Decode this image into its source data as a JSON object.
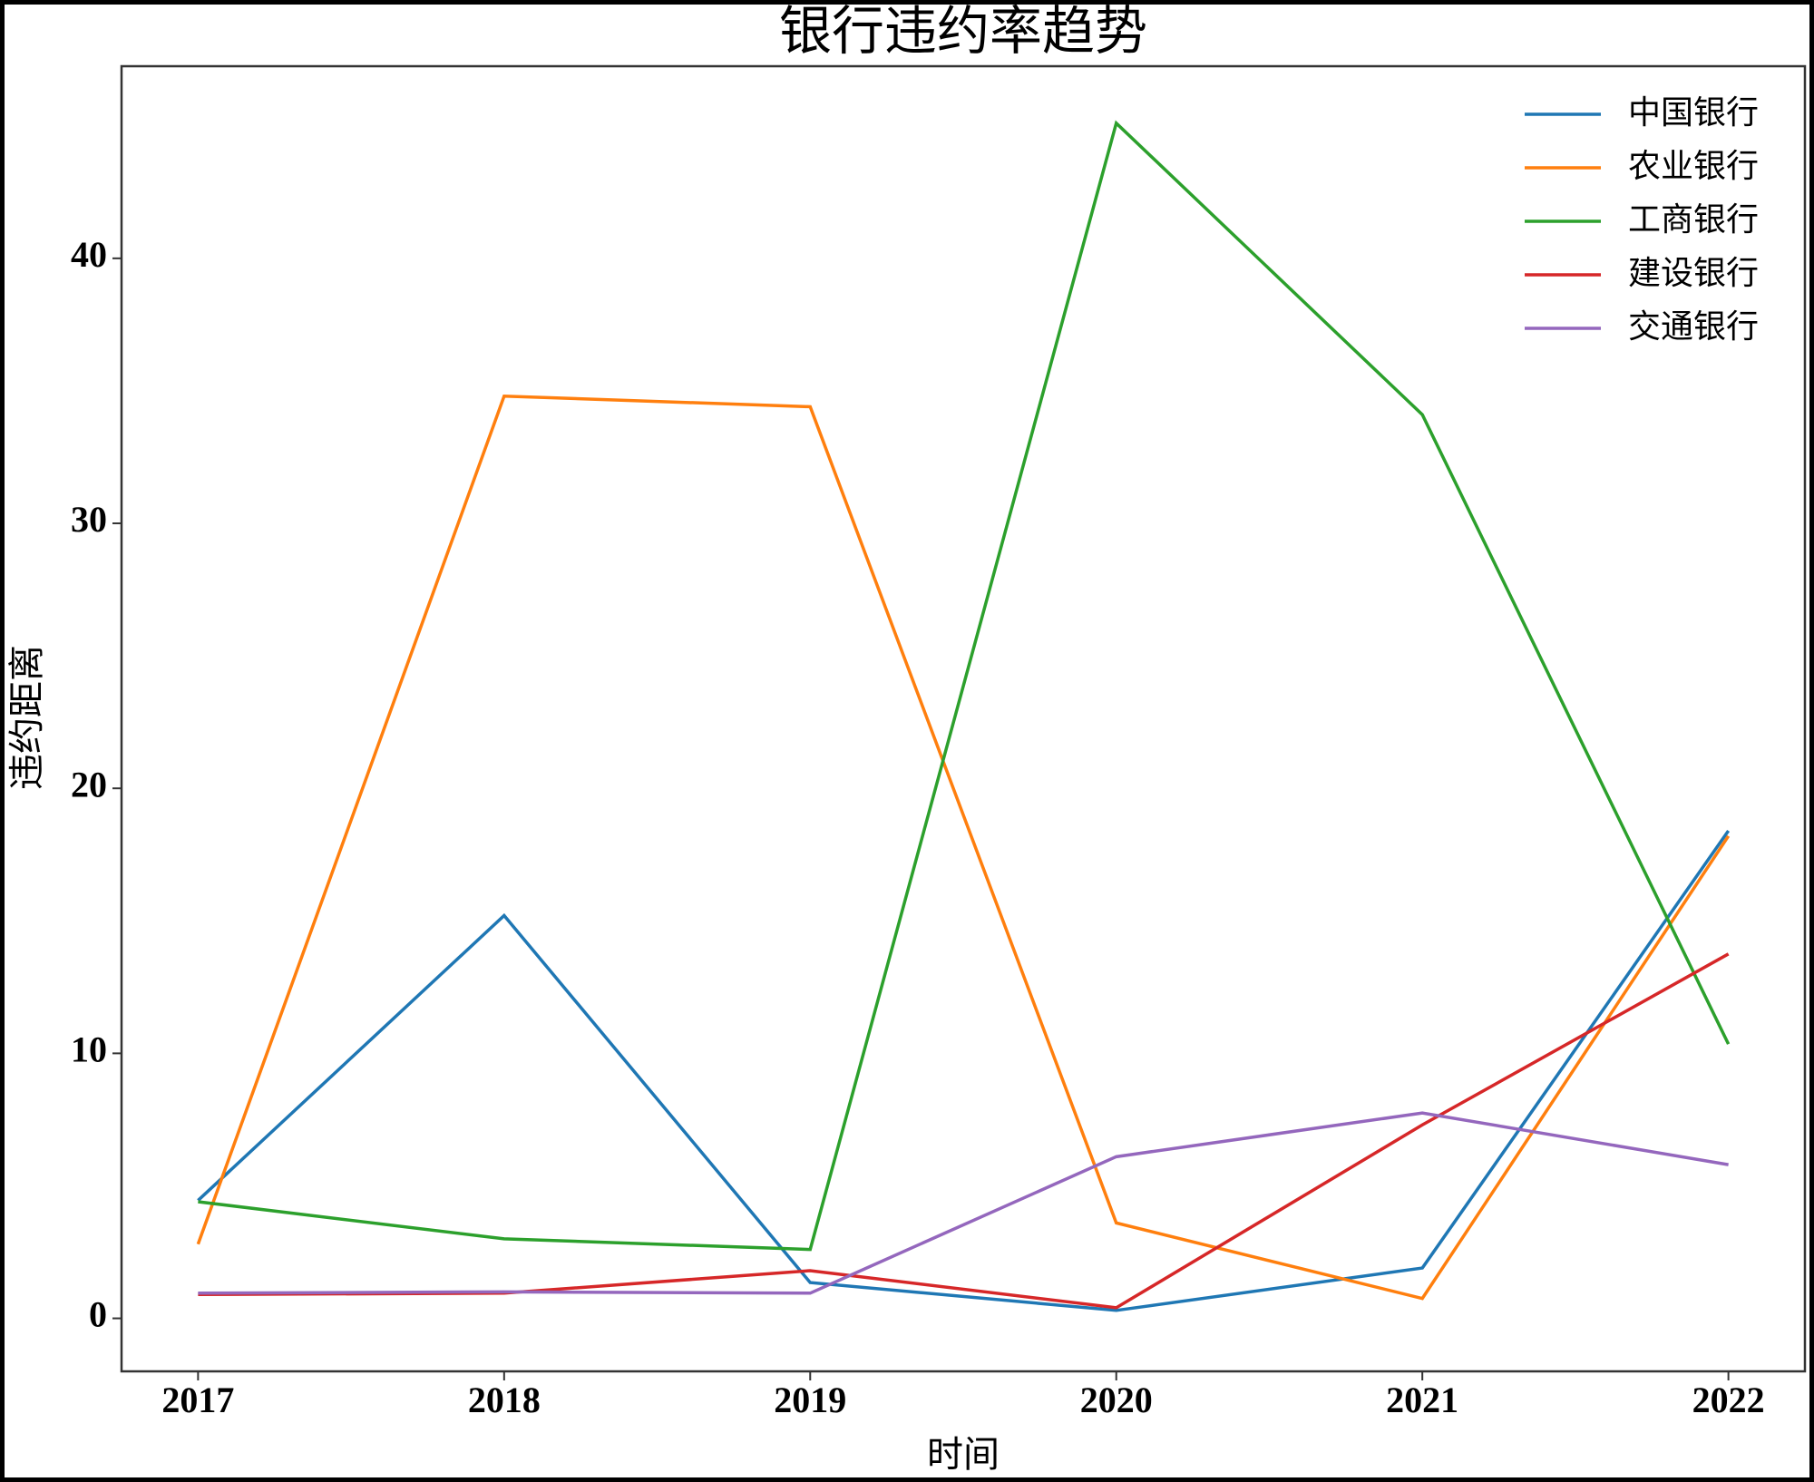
{
  "chart_data": {
    "type": "line",
    "title": "银行违约率趋势",
    "x_label": "时间",
    "y_label": "违约距离",
    "x": [
      2017,
      2018,
      2019,
      2020,
      2021,
      2022
    ],
    "series": [
      {
        "name": "中国银行",
        "color": "#1f77b4",
        "values": [
          4.45,
          15.2,
          1.35,
          0.3,
          1.9,
          18.4
        ]
      },
      {
        "name": "农业银行",
        "color": "#ff7f0e",
        "values": [
          2.8,
          34.8,
          34.4,
          3.6,
          0.75,
          18.2
        ]
      },
      {
        "name": "工商银行",
        "color": "#2ca02c",
        "values": [
          4.4,
          3.0,
          2.6,
          45.1,
          34.1,
          10.35
        ]
      },
      {
        "name": "建设银行",
        "color": "#d62728",
        "values": [
          0.9,
          0.95,
          1.8,
          0.4,
          7.3,
          13.75
        ]
      },
      {
        "name": "交通银行",
        "color": "#9467bd",
        "values": [
          0.95,
          1.0,
          0.95,
          6.1,
          7.75,
          5.8
        ]
      }
    ],
    "xlim": [
      2016.75,
      2022.25
    ],
    "xticks": [
      2017,
      2018,
      2019,
      2020,
      2021,
      2022
    ],
    "ylim": [
      -2,
      47.25
    ],
    "yticks": [
      0,
      10,
      20,
      30,
      40
    ],
    "legend": "upper right"
  }
}
